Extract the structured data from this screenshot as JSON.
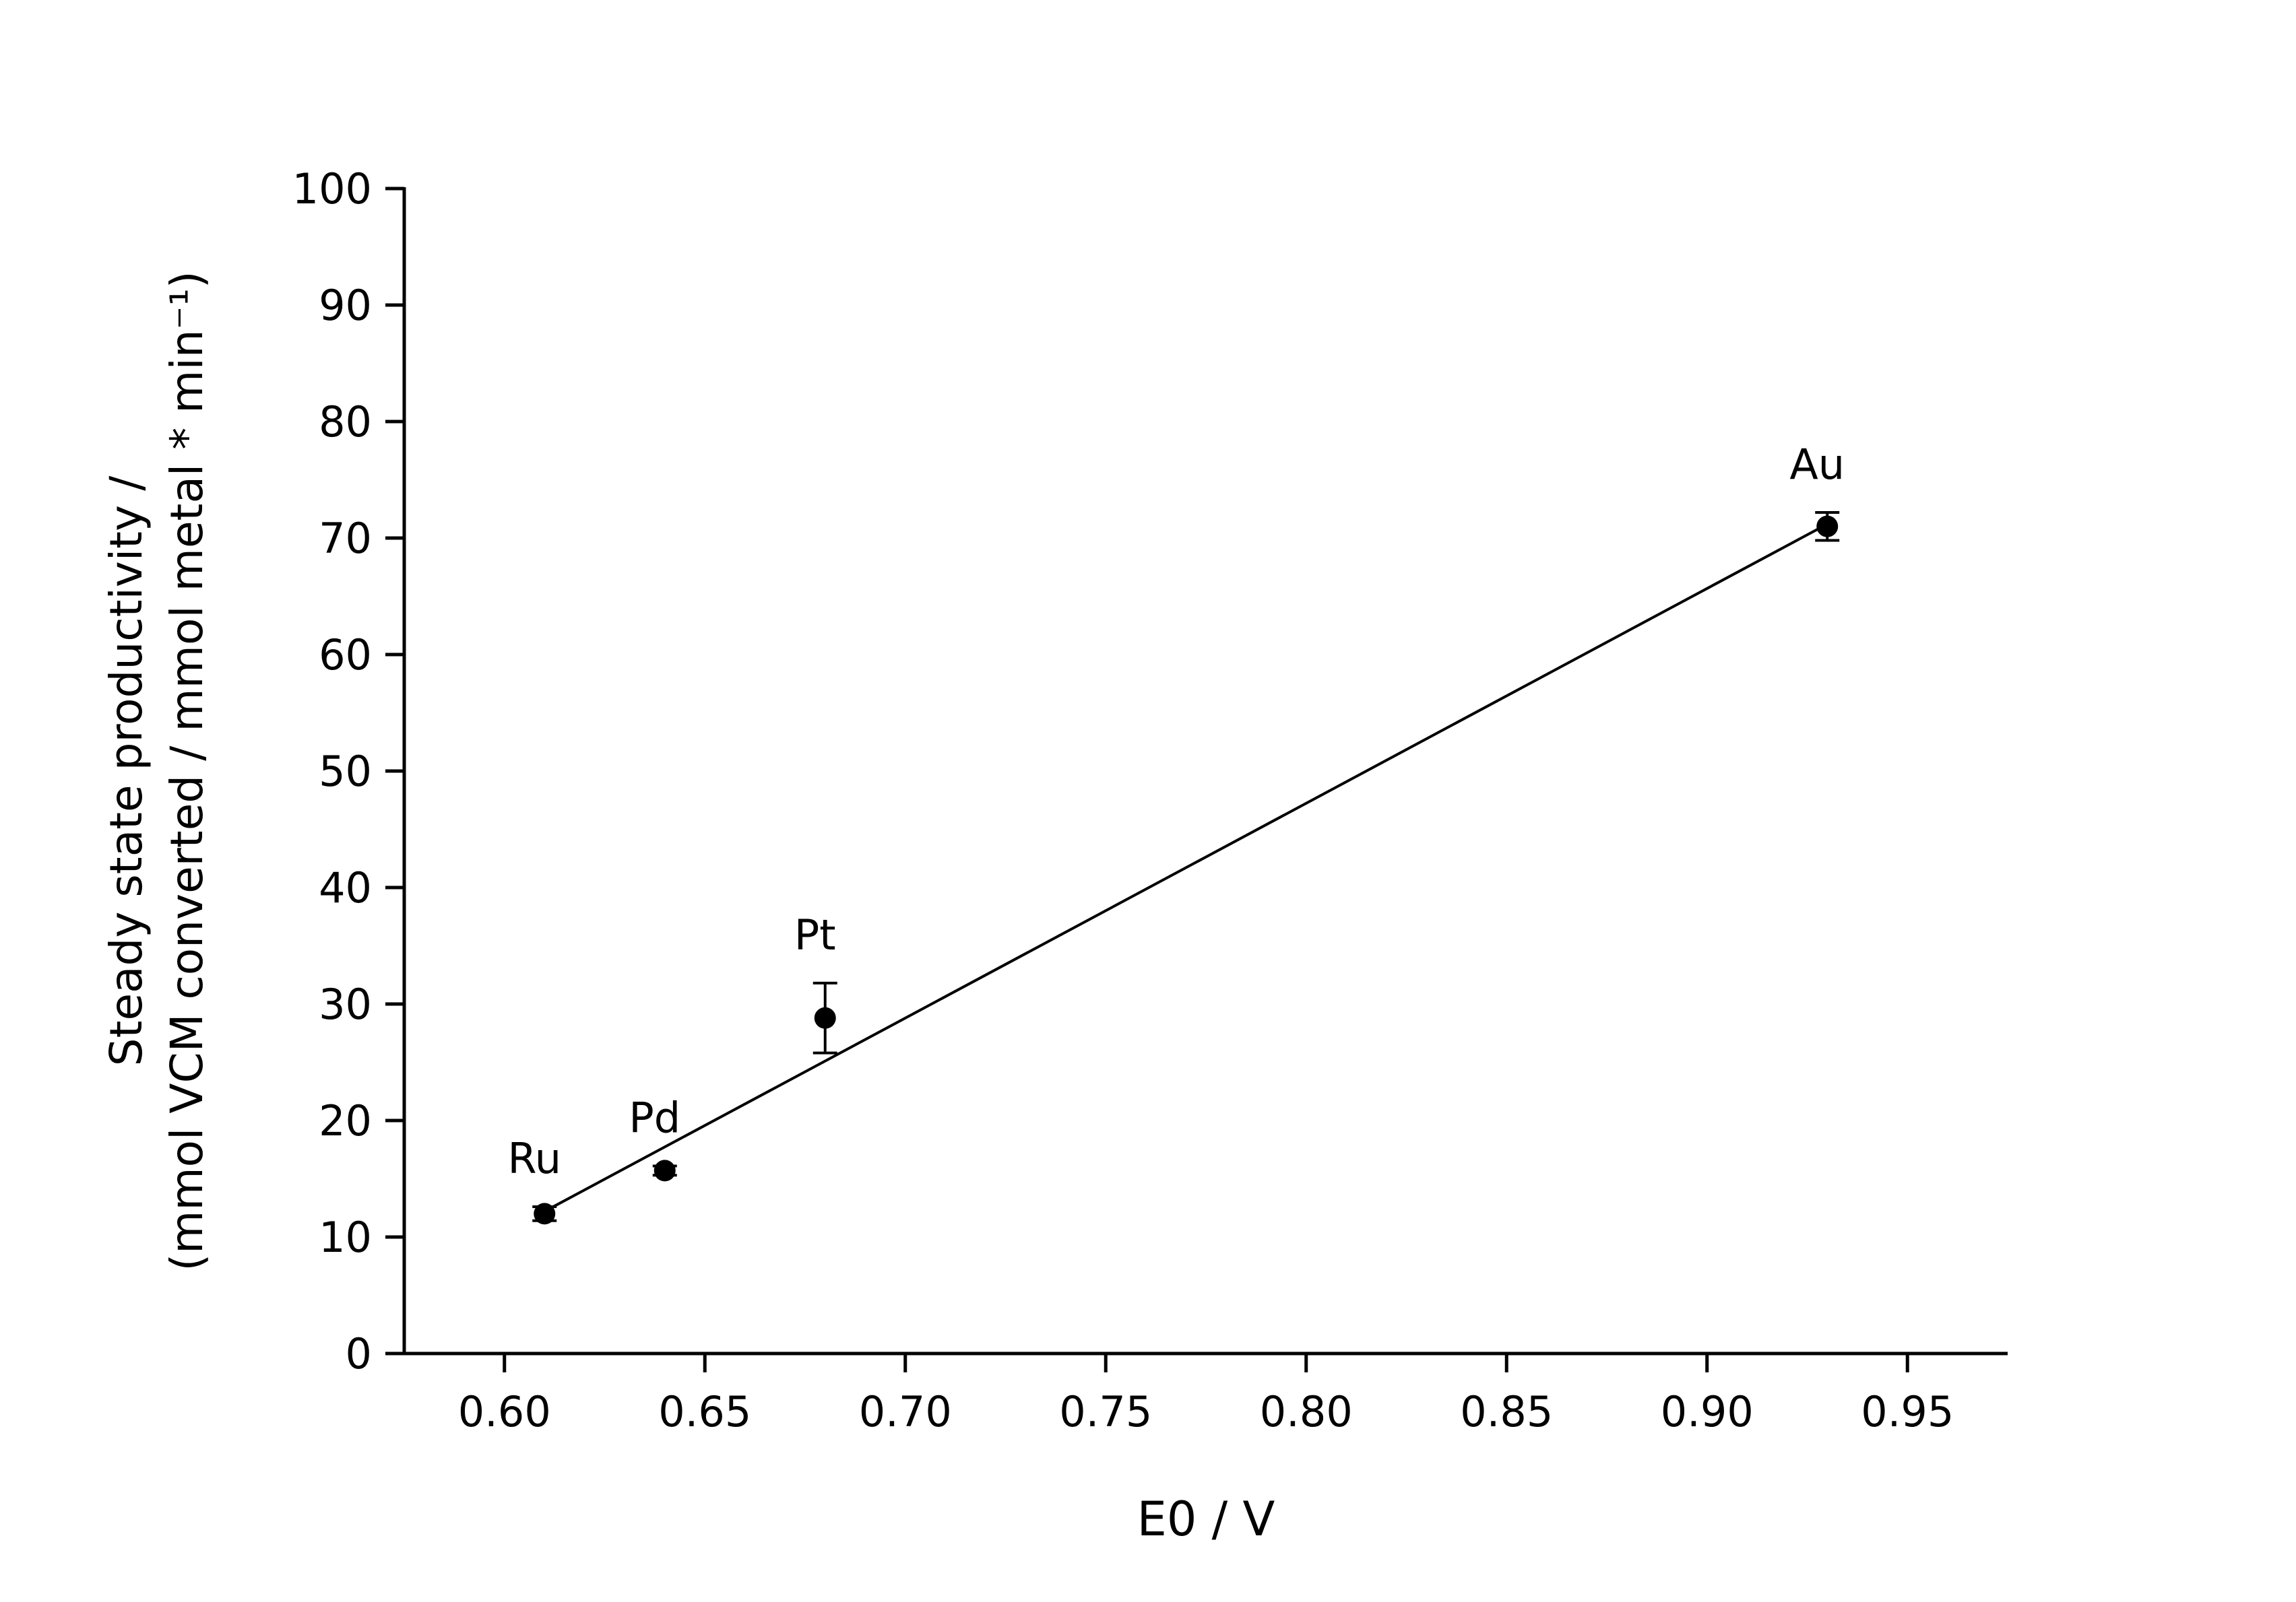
{
  "chart_data": {
    "type": "scatter",
    "title": "",
    "xlabel": "E0 / V",
    "ylabel_line1": "Steady state productivity /",
    "ylabel_line2": "(mmol VCM converted / mmol metal * min⁻¹)",
    "xlim": [
      0.575,
      0.975
    ],
    "ylim": [
      0,
      100
    ],
    "x_tick_labels": [
      "0.60",
      "0.65",
      "0.70",
      "0.75",
      "0.80",
      "0.85",
      "0.90",
      "0.95"
    ],
    "y_tick_labels": [
      "0",
      "10",
      "20",
      "30",
      "40",
      "50",
      "60",
      "70",
      "80",
      "90",
      "100"
    ],
    "grid": false,
    "legend": "none",
    "points": [
      {
        "label": "Ru",
        "x": 0.61,
        "y": 12.0,
        "yerr": 0.6
      },
      {
        "label": "Pd",
        "x": 0.64,
        "y": 15.7,
        "yerr": 0.4
      },
      {
        "label": "Pt",
        "x": 0.68,
        "y": 28.8,
        "yerr": 3.0
      },
      {
        "label": "Au",
        "x": 0.93,
        "y": 71.0,
        "yerr": 1.2
      }
    ],
    "trend_line": {
      "x1": 0.61,
      "y1": 12.2,
      "x2": 0.93,
      "y2": 71.2
    },
    "marker_color": "#000000",
    "line_color": "#000000",
    "background_color": "#ffffff"
  }
}
